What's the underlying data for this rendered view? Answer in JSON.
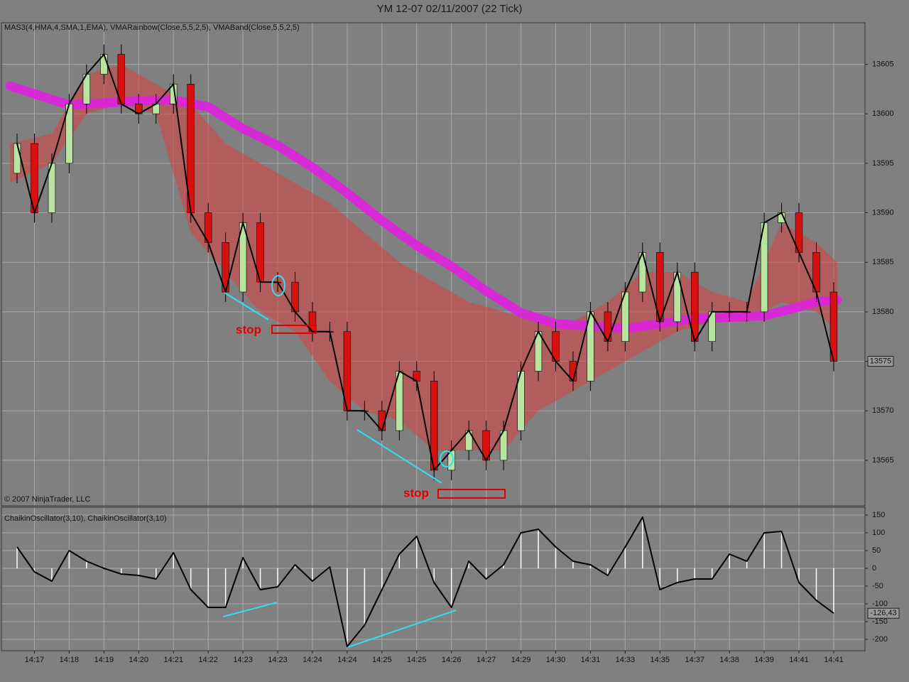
{
  "chart_data": [
    {
      "type": "candlestick",
      "title": "YM 12-07  02/11/2007  (22 Tick)",
      "subtitle": "MAS3(4,HMA,4,SMA,1,EMA), VMARainbow(Close,5,5,2,5), VMABand(Close,5,5,2,5)",
      "copyright": "© 2007 NinjaTrader, LLC",
      "annotations": [
        "stop",
        "stop"
      ],
      "up_color": "#b8e4a0",
      "down_color": "#d81010",
      "line_color": "#000000",
      "xlim": [
        -1.9,
        47.8
      ],
      "ylim": [
        13560.4,
        13609.2
      ],
      "yticks": [
        13565,
        13570,
        13575,
        13580,
        13585,
        13590,
        13595,
        13600,
        13605
      ],
      "xticks": [
        {
          "value": 0,
          "label": "14:17"
        },
        {
          "value": 2,
          "label": "14:18"
        },
        {
          "value": 4,
          "label": "14:19"
        },
        {
          "value": 6,
          "label": "14:20"
        },
        {
          "value": 8,
          "label": "14:21"
        },
        {
          "value": 10,
          "label": "14:22"
        },
        {
          "value": 12,
          "label": "14:23"
        },
        {
          "value": 14,
          "label": "14:23"
        },
        {
          "value": 16,
          "label": "14:24"
        },
        {
          "value": 18,
          "label": "14:24"
        },
        {
          "value": 20,
          "label": "14:25"
        },
        {
          "value": 22,
          "label": "14:25"
        },
        {
          "value": 24,
          "label": "14:26"
        },
        {
          "value": 26,
          "label": "14:27"
        },
        {
          "value": 28,
          "label": "14:29"
        },
        {
          "value": 30,
          "label": "14:30"
        },
        {
          "value": 32,
          "label": "14:31"
        },
        {
          "value": 34,
          "label": "14:33"
        },
        {
          "value": 36,
          "label": "14:35"
        },
        {
          "value": 38,
          "label": "14:37"
        },
        {
          "value": 40,
          "label": "14:38"
        },
        {
          "value": 42,
          "label": "14:39"
        },
        {
          "value": 44,
          "label": "14:41"
        },
        {
          "value": 46,
          "label": "14:41"
        }
      ],
      "grid": true,
      "last_price": 13575,
      "x": [
        -1,
        0,
        1,
        2,
        3,
        4,
        5,
        6,
        7,
        8,
        9,
        10,
        11,
        12,
        13,
        14,
        15,
        16,
        17,
        18,
        19,
        20,
        21,
        22,
        23,
        24,
        25,
        26,
        27,
        28,
        29,
        30,
        31,
        32,
        33,
        34,
        35,
        36,
        37,
        38,
        39,
        40,
        41,
        42,
        43,
        44,
        45,
        46
      ],
      "open": [
        13594,
        13597,
        13590,
        13595,
        13601,
        13604,
        13606,
        13601,
        13600,
        13601,
        13603,
        13590,
        13587,
        13582,
        13589,
        13583,
        13583,
        13580,
        13578,
        13578,
        13570,
        13570,
        13568,
        13574,
        13573,
        13564,
        13566,
        13568,
        13565,
        13568,
        13574,
        13578,
        13575,
        13573,
        13580,
        13577,
        13582,
        13586,
        13579,
        13584,
        13577,
        13580,
        13580,
        13580,
        13589,
        13590,
        13586,
        13582
      ],
      "high": [
        13598,
        13598,
        13596,
        13602,
        13605,
        13607,
        13607,
        13602,
        13602,
        13604,
        13604,
        13591,
        13588,
        13590,
        13590,
        13584,
        13584,
        13581,
        13579,
        13579,
        13571,
        13571,
        13575,
        13575,
        13574,
        13567,
        13569,
        13569,
        13569,
        13575,
        13579,
        13579,
        13576,
        13581,
        13581,
        13583,
        13587,
        13587,
        13585,
        13585,
        13581,
        13581,
        13581,
        13590,
        13591,
        13591,
        13587,
        13583
      ],
      "low": [
        13593,
        13589,
        13589,
        13594,
        13600,
        13603,
        13600,
        13599,
        13599,
        13600,
        13589,
        13586,
        13581,
        13581,
        13582,
        13582,
        13579,
        13577,
        13577,
        13569,
        13569,
        13567,
        13567,
        13572,
        13563,
        13563,
        13565,
        13564,
        13564,
        13567,
        13573,
        13574,
        13572,
        13572,
        13576,
        13576,
        13581,
        13578,
        13578,
        13576,
        13576,
        13579,
        13579,
        13579,
        13588,
        13585,
        13581,
        13574
      ],
      "close": [
        13597,
        13590,
        13595,
        13601,
        13604,
        13606,
        13601,
        13600,
        13601,
        13603,
        13590,
        13587,
        13582,
        13589,
        13583,
        13583,
        13580,
        13578,
        13578,
        13570,
        13570,
        13568,
        13574,
        13573,
        13564,
        13566,
        13568,
        13565,
        13568,
        13574,
        13578,
        13575,
        13573,
        13580,
        13577,
        13582,
        13586,
        13579,
        13584,
        13577,
        13580,
        13580,
        13580,
        13589,
        13590,
        13586,
        13582,
        13575
      ],
      "band": {
        "color": "#d84040",
        "x": [
          -1.4,
          1,
          3,
          5,
          7,
          9,
          11,
          13,
          15,
          17,
          19,
          21,
          23,
          25,
          27,
          29,
          31,
          33,
          35,
          37,
          39,
          41,
          43,
          45,
          46.2
        ],
        "upper": [
          13597,
          13598,
          13604,
          13605,
          13603,
          13601,
          13597,
          13595,
          13593,
          13591,
          13588,
          13585,
          13583,
          13581,
          13580,
          13579,
          13579,
          13581,
          13584,
          13584,
          13582,
          13581,
          13589,
          13587,
          13585
        ],
        "lower": [
          13593,
          13595,
          13600,
          13601,
          13600,
          13588,
          13584,
          13580,
          13578,
          13573,
          13570,
          13569,
          13566,
          13566,
          13566,
          13570,
          13572,
          13574,
          13576,
          13578,
          13579,
          13579,
          13581,
          13580,
          13578
        ]
      },
      "rainbow": {
        "color": "#e020e0",
        "x": [
          -1.4,
          2,
          6,
          8,
          10,
          12,
          14,
          16,
          18,
          20,
          22,
          24,
          26,
          28,
          30,
          34,
          38,
          42,
          44,
          45,
          46.2
        ],
        "values": [
          13602.8,
          13600.9,
          13601.3,
          13601.4,
          13600.7,
          13598.5,
          13596.8,
          13594.6,
          13592,
          13589.2,
          13586.7,
          13584.6,
          13582.1,
          13579.9,
          13578.8,
          13578.3,
          13579.3,
          13579.6,
          13580.5,
          13581,
          13581.2
        ]
      }
    },
    {
      "type": "oscillator",
      "title": "ChaikinOscillator(3,10), ChaikinOscillator(3,10)",
      "xlim": [
        -1.9,
        47.8
      ],
      "ylim": [
        -232,
        172
      ],
      "yticks": [
        -200,
        -150,
        -100,
        -50,
        0,
        50,
        100,
        150
      ],
      "line_color": "#000000",
      "bar_color": "#ffffff",
      "last_value": {
        "value": -126.43,
        "label": "-126,43"
      },
      "x": [
        -1,
        0,
        1,
        2,
        3,
        4,
        5,
        6,
        7,
        8,
        9,
        10,
        11,
        12,
        13,
        14,
        15,
        16,
        17,
        18,
        19,
        20,
        21,
        22,
        23,
        24,
        25,
        26,
        27,
        28,
        29,
        30,
        31,
        32,
        33,
        34,
        35,
        36,
        37,
        38,
        39,
        40,
        41,
        42,
        43,
        44,
        45,
        46
      ],
      "values": [
        60,
        -10,
        -36,
        50,
        20,
        0,
        -16,
        -20,
        -30,
        44,
        -60,
        -110,
        -110,
        30,
        -60,
        -52,
        10,
        -36,
        4,
        -220,
        -160,
        -60,
        40,
        90,
        -40,
        -110,
        20,
        -30,
        10,
        100,
        110,
        60,
        20,
        10,
        -20,
        60,
        144,
        -60,
        -40,
        -30,
        -30,
        40,
        20,
        100,
        104,
        -40,
        -90,
        -126.43
      ]
    }
  ]
}
